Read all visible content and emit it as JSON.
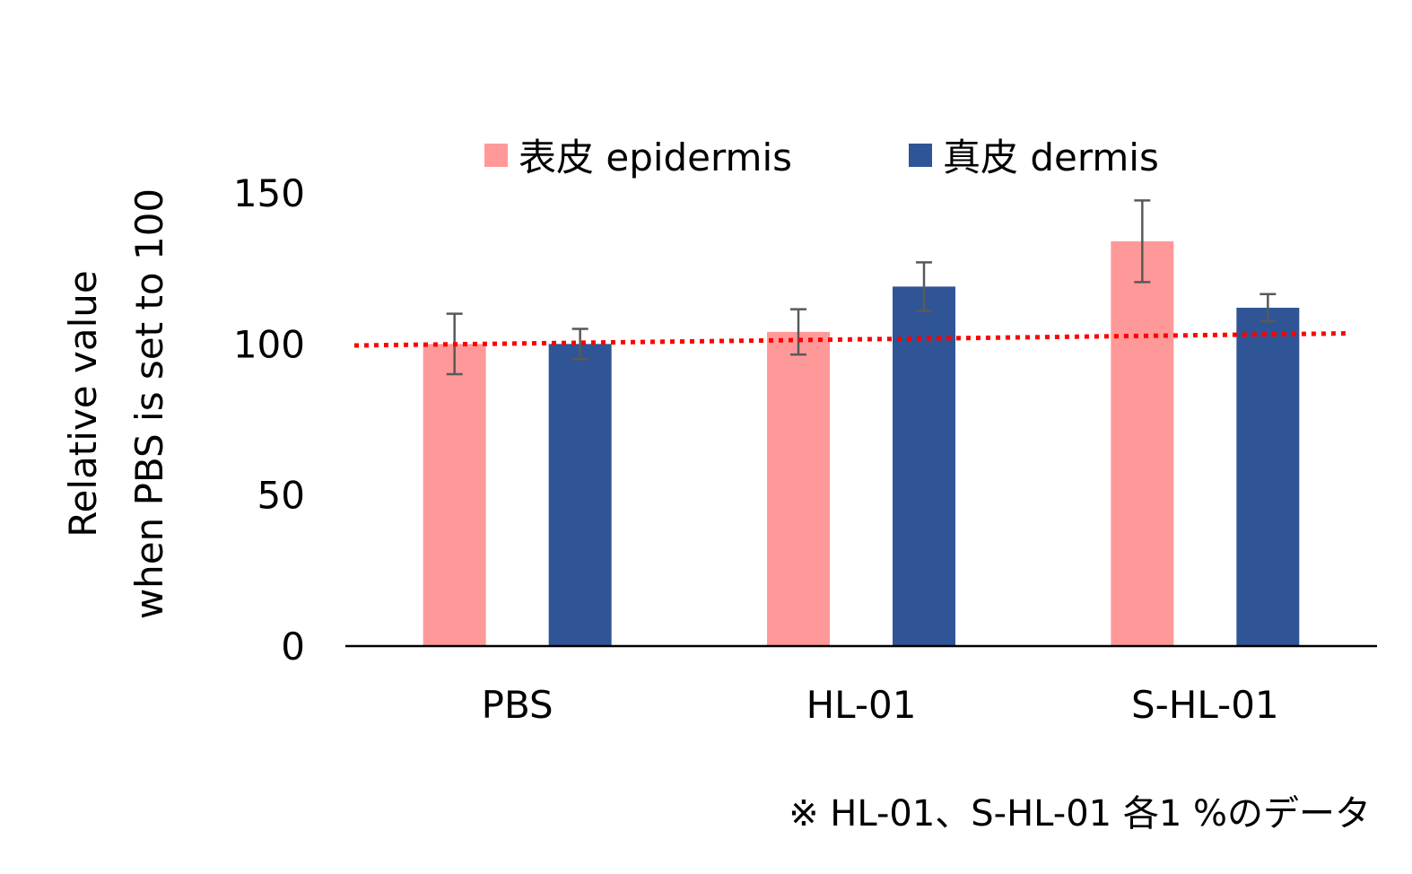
{
  "chart_data": {
    "type": "bar",
    "categories": [
      "PBS",
      "HL-01",
      "S-HL-01"
    ],
    "series": [
      {
        "name": "表皮 epidermis",
        "color": "#ff9999",
        "values": [
          100,
          104,
          134
        ],
        "error": [
          10,
          7.5,
          13.5
        ]
      },
      {
        "name": "真皮 dermis",
        "color": "#2f5597",
        "values": [
          100,
          119,
          112
        ],
        "error": [
          5,
          8,
          4.5
        ]
      }
    ],
    "reference_line": {
      "start": 99.5,
      "end": 103.5,
      "color": "#ff0000",
      "style": "dotted"
    },
    "ylim": [
      0,
      150
    ],
    "yticks": [
      "0",
      "50",
      "100",
      "150"
    ],
    "ylabel_lines": [
      "Relative value",
      "when PBS is set to 100"
    ],
    "legend_position": "top",
    "grid": false
  },
  "note": "※ HL-01、S-HL-01 各1 %のデータ"
}
